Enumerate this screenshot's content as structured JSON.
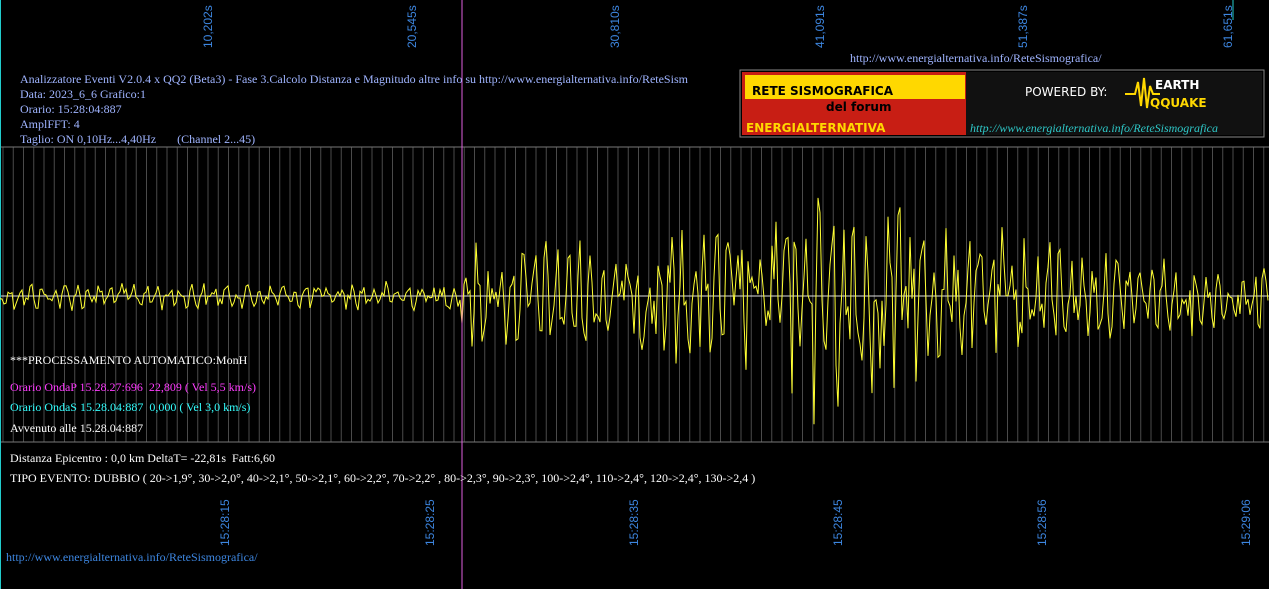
{
  "header": {
    "url": "http://www.energialternativa.info/ReteSismografica/"
  },
  "info": {
    "lines": [
      "Analizzatore Eventi V2.0.4 x QQ2 (Beta3) - Fase 3.Calcolo Distanza e Magnitudo altre info su http://www.energialternativa.info/ReteSism",
      "Data: 2023_6_6 Grafico:1",
      "Orario: 15:28:04:887",
      "AmplFFT: 4",
      "Taglio: ON 0,10Hz...4,40Hz       (Channel 2...45)"
    ]
  },
  "logo": {
    "title": "RETE SISMOGRAFICA",
    "subtitle": "del forum",
    "name": "ENERGIALTERNATIVA",
    "powered": "POWERED BY:",
    "earth": "EARTH",
    "quake": "QQUAKE",
    "url": "http://www.energialternativa.info/ReteSismografica"
  },
  "time_axis": {
    "top": [
      "10,202s",
      "20,545s",
      "30,810s",
      "41,091s",
      "51,387s",
      "61,651s"
    ],
    "bottom": [
      "15:28:15",
      "15:28:25",
      "15:28:35",
      "15:28:45",
      "15:28:56",
      "15:29:06"
    ]
  },
  "processing": {
    "title": "***PROCESSAMENTO AUTOMATICO:MonH",
    "onda_p": "Orario OndaP 15.28.27:696  22,809 ( Vel 5,5 km/s)",
    "onda_s": "Orario OndaS 15.28.04:887  0,000 ( Vel 3,0 km/s)",
    "event_time": "Avvenuto alle 15.28.04:887",
    "distance": "Distanza Epicentro : 0,0 km DeltaT= -22,81s  Fatt:6,60",
    "type": "TIPO EVENTO: DUBBIO ( 20->1,9°, 30->2,0°, 40->2,1°, 50->2,1°, 60->2,2°, 70->2,2° , 80->2,3°, 90->2,3°, 100->2,4°, 110->2,4°, 120->2,4°, 130->2,4 )"
  },
  "footer": {
    "url": "http://www.energialternativa.info/ReteSismografica/"
  }
}
